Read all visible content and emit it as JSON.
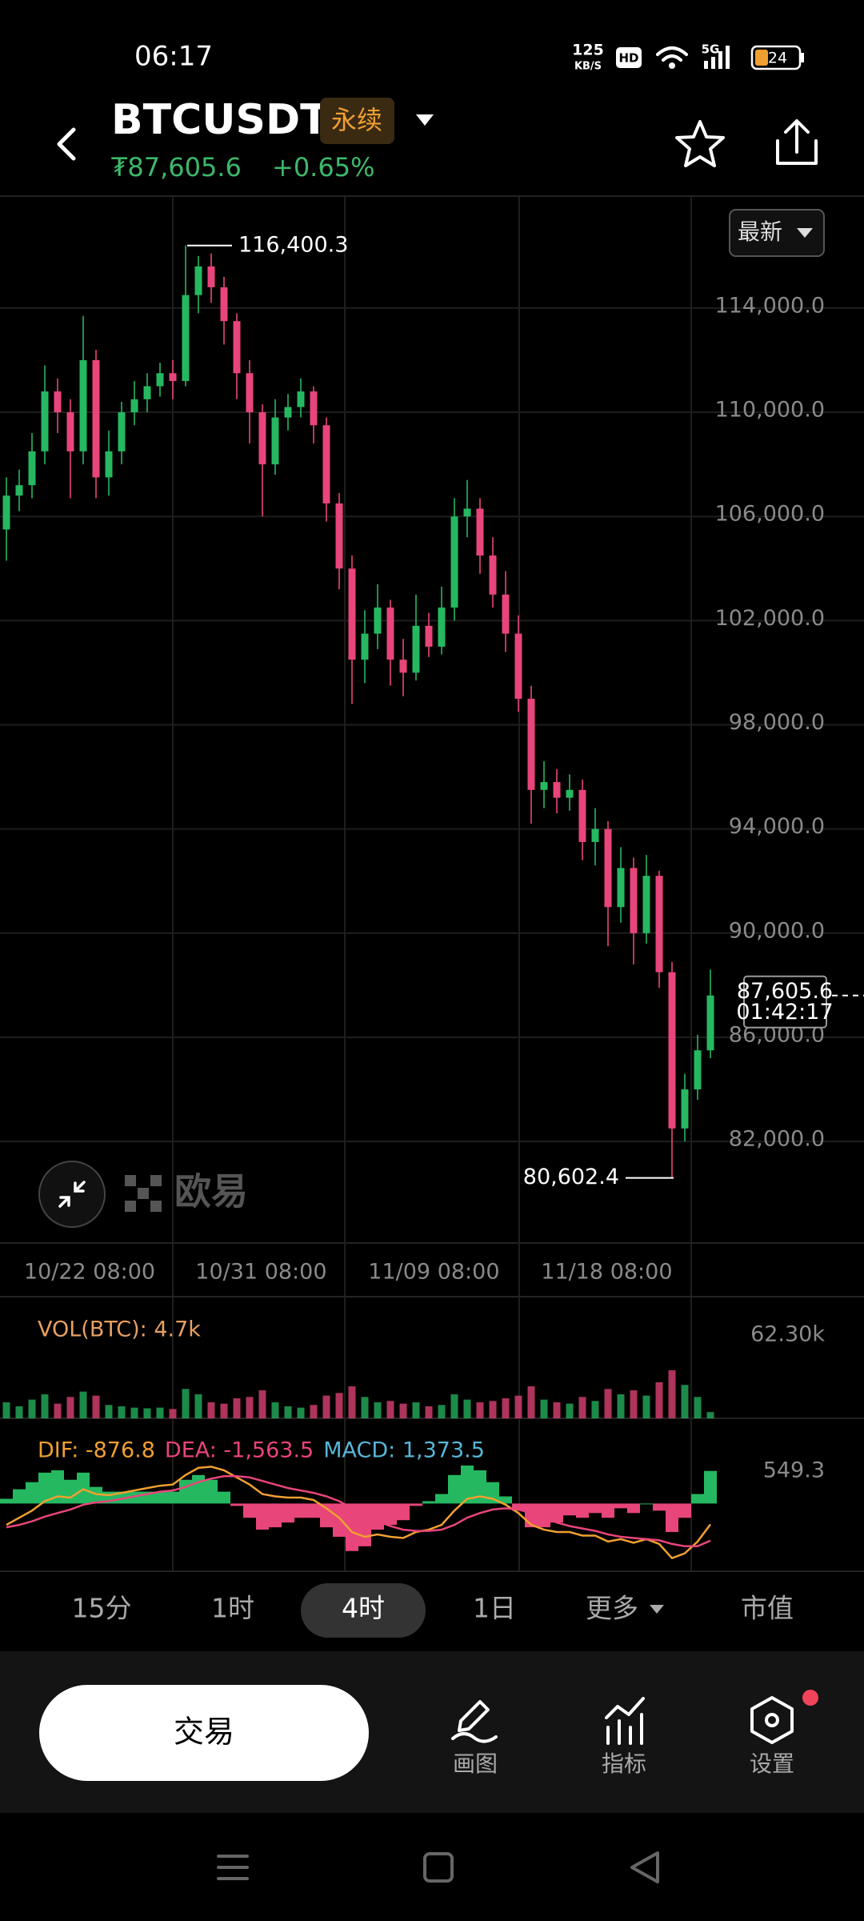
{
  "status_bar": {
    "time": "06:17",
    "speed": "125",
    "speed_unit": "KB/S",
    "hd": "HD",
    "network": "5G",
    "battery": "24"
  },
  "header": {
    "symbol": "BTCUSDT",
    "badge": "永续",
    "price": "₮87,605.6",
    "change": "+0.65%"
  },
  "chart_data": [
    {
      "type": "candlestick",
      "open": [
        105500,
        106800,
        107200,
        108500,
        110800,
        110000,
        108500,
        112000,
        107500,
        108500,
        110000,
        110500,
        111000,
        111500,
        111200,
        114500,
        115600,
        114800,
        113500,
        111500,
        110000,
        108000,
        109800,
        110200,
        110800,
        109500,
        106500,
        104000,
        100500,
        101500,
        102500,
        100500,
        100000,
        101800,
        101000,
        102500,
        106000,
        106300,
        104500,
        103000,
        101500,
        99000,
        95500,
        95800,
        95200,
        95500,
        93500,
        94000,
        91000,
        92500,
        90000,
        92200,
        88500,
        82500,
        84000,
        85500
      ],
      "high": [
        107500,
        107800,
        109200,
        111800,
        111300,
        110500,
        113700,
        112400,
        109300,
        110400,
        111200,
        111500,
        111900,
        112000,
        116400.3,
        116000,
        116100,
        115200,
        113800,
        112000,
        110300,
        110500,
        110700,
        111300,
        111000,
        109800,
        106900,
        104500,
        102400,
        103400,
        102800,
        101300,
        103000,
        102300,
        103300,
        106700,
        107400,
        106700,
        105200,
        103900,
        102200,
        99500,
        96600,
        96300,
        96100,
        95900,
        94800,
        94300,
        93300,
        92900,
        93000,
        92400,
        88900,
        84600,
        86100,
        88600
      ],
      "low": [
        104300,
        106200,
        106700,
        108000,
        109200,
        106700,
        108000,
        106700,
        106800,
        108000,
        109500,
        110000,
        110600,
        110500,
        111000,
        113800,
        114200,
        112600,
        110500,
        108800,
        106000,
        107600,
        109300,
        109800,
        108800,
        105800,
        103200,
        98800,
        99600,
        100900,
        99500,
        99100,
        99700,
        100600,
        100700,
        102000,
        105200,
        103800,
        102500,
        100800,
        98500,
        94200,
        94800,
        94600,
        94700,
        92800,
        92600,
        89500,
        90400,
        88800,
        89600,
        87900,
        80602.4,
        82000,
        83600,
        85200
      ],
      "close": [
        106800,
        107200,
        108500,
        110800,
        110000,
        108500,
        112000,
        107500,
        108500,
        110000,
        110500,
        111000,
        111500,
        111200,
        114500,
        115600,
        114800,
        113500,
        111500,
        110000,
        108000,
        109800,
        110200,
        110800,
        109500,
        106500,
        104000,
        100500,
        101500,
        102500,
        100500,
        100000,
        101800,
        101000,
        102500,
        106000,
        106300,
        104500,
        103000,
        101500,
        99000,
        95500,
        95800,
        95200,
        95500,
        93500,
        94000,
        91000,
        92500,
        90000,
        92200,
        88500,
        82500,
        84000,
        85500,
        87605.6
      ],
      "up_color": "#25b861",
      "down_color": "#e8457a",
      "xlim": [
        -0.5,
        55.5
      ],
      "xticks": [
        {
          "value": 6.5,
          "label": "10/22 08:00"
        },
        {
          "value": 19.9,
          "label": "10/31 08:00"
        },
        {
          "value": 33.4,
          "label": "11/09 08:00"
        },
        {
          "value": 46.9,
          "label": "11/18 08:00"
        }
      ],
      "ylim": [
        78100,
        118300
      ],
      "yticks": [
        {
          "value": 82000,
          "label": "82,000.0"
        },
        {
          "value": 86000,
          "label": "86,000.0"
        },
        {
          "value": 90000,
          "label": "90,000.0"
        },
        {
          "value": 94000,
          "label": "94,000.0"
        },
        {
          "value": 98000,
          "label": "98,000.0"
        },
        {
          "value": 102000,
          "label": "102,000.0"
        },
        {
          "value": 106000,
          "label": "106,000.0"
        },
        {
          "value": 110000,
          "label": "110,000.0"
        },
        {
          "value": 114000,
          "label": "114,000.0"
        }
      ],
      "grid": true,
      "high_marker": {
        "value": 116400.3,
        "label": "116,400.3"
      },
      "low_marker": {
        "value": 80602.4,
        "label": "80,602.4"
      },
      "last_price": {
        "value": 87605.6,
        "label": "87,605.6"
      },
      "countdown": "01:42:17",
      "price_mode": "最新",
      "watermark": "欧易"
    },
    {
      "type": "bar",
      "series": [
        {
          "name": "VOL(BTC): 4.7k",
          "color": "#e8a062",
          "values": [
            12000,
            9000,
            14000,
            18000,
            11000,
            16000,
            20000,
            17000,
            10000,
            9000,
            8000,
            7500,
            8000,
            7000,
            22000,
            18000,
            12000,
            11000,
            15000,
            16000,
            21000,
            12000,
            9000,
            8000,
            10000,
            17000,
            19000,
            24000,
            16000,
            12000,
            13000,
            11000,
            12000,
            9000,
            10000,
            18000,
            14000,
            12000,
            13000,
            15000,
            17000,
            24000,
            14000,
            12000,
            11000,
            16000,
            13000,
            22000,
            18000,
            21000,
            17000,
            27000,
            36000,
            25000,
            16000,
            4700
          ]
        }
      ],
      "xlim": [
        -0.5,
        55.5
      ],
      "ylim": [
        0,
        62300
      ],
      "yticks": [
        {
          "value": 62300,
          "label": "62.30k"
        }
      ]
    },
    {
      "type": "macd",
      "series": [
        {
          "name": "DIF: -876.8",
          "color": "#f0a030",
          "values": [
            -900,
            -600,
            -300,
            100,
            300,
            250,
            600,
            400,
            350,
            450,
            550,
            650,
            750,
            800,
            1200,
            1500,
            1550,
            1400,
            1100,
            800,
            400,
            300,
            250,
            250,
            150,
            -200,
            -600,
            -1200,
            -1400,
            -1300,
            -1400,
            -1450,
            -1200,
            -1100,
            -900,
            -300,
            200,
            300,
            200,
            -50,
            -400,
            -900,
            -1100,
            -1200,
            -1200,
            -1350,
            -1350,
            -1600,
            -1500,
            -1650,
            -1500,
            -1700,
            -2300,
            -2100,
            -1600,
            -876.8
          ]
        },
        {
          "name": "DEA: -1,563.5",
          "color": "#e8457a",
          "values": [
            -1000,
            -900,
            -750,
            -550,
            -400,
            -250,
            -50,
            50,
            100,
            200,
            300,
            400,
            500,
            550,
            700,
            900,
            1050,
            1150,
            1150,
            1100,
            950,
            800,
            650,
            550,
            450,
            300,
            100,
            -200,
            -500,
            -750,
            -950,
            -1100,
            -1150,
            -1150,
            -1100,
            -900,
            -600,
            -400,
            -250,
            -200,
            -250,
            -400,
            -600,
            -800,
            -950,
            -1050,
            -1150,
            -1300,
            -1400,
            -1450,
            -1500,
            -1550,
            -1700,
            -1800,
            -1800,
            -1563.5
          ]
        },
        {
          "name": "MACD: 1,373.5",
          "color": "#58b6d8",
          "values": [
            200,
            600,
            900,
            1300,
            1400,
            1000,
            1300,
            700,
            500,
            500,
            500,
            500,
            500,
            500,
            1000,
            1200,
            1000,
            500,
            -100,
            -600,
            -1100,
            -1000,
            -800,
            -600,
            -600,
            -1000,
            -1400,
            -2000,
            -1800,
            -1100,
            -900,
            -700,
            -100,
            100,
            400,
            1200,
            1600,
            1400,
            900,
            300,
            -300,
            -1000,
            -1000,
            -800,
            -500,
            -600,
            -400,
            -600,
            -200,
            -400,
            0,
            -300,
            -1200,
            -600,
            400,
            1373.5
          ]
        }
      ],
      "xlim": [
        -0.5,
        55.5
      ],
      "ylim": [
        -2850,
        3250
      ],
      "yticks": [
        549.3
      ]
    }
  ],
  "timeframes": [
    "15分",
    "1时",
    "4时",
    "1日",
    "更多",
    "市值"
  ],
  "selected_timeframe": 2,
  "bottom_bar": {
    "trade": "交易",
    "tools": [
      "画图",
      "指标",
      "设置"
    ]
  }
}
